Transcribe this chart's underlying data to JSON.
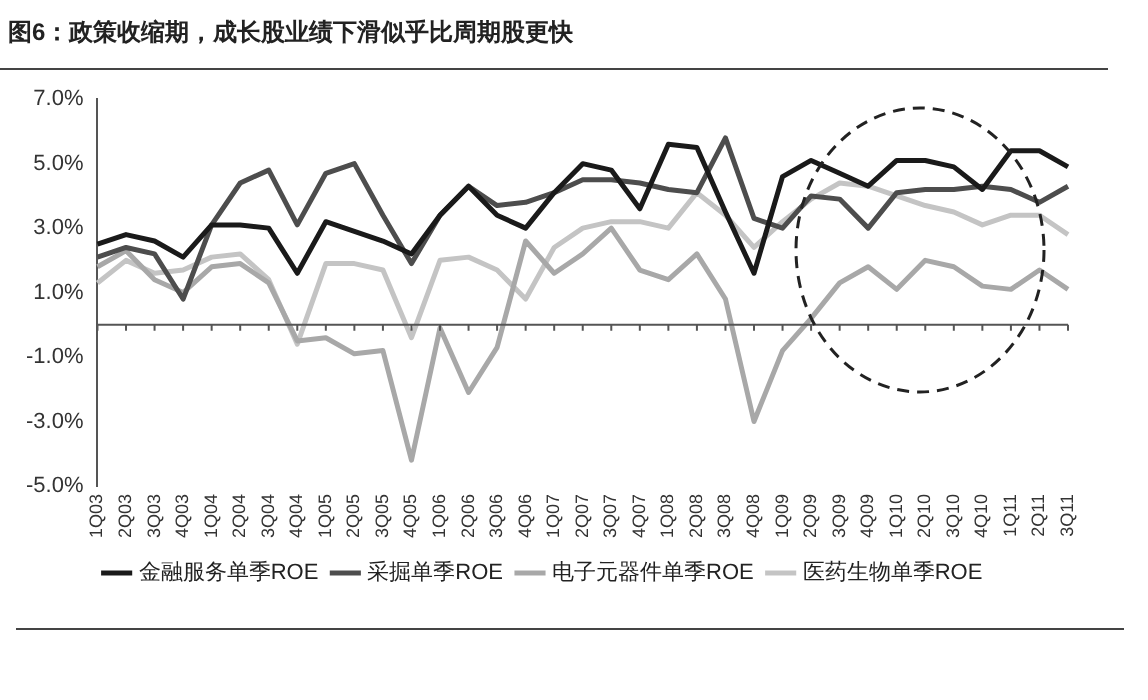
{
  "chart_data": {
    "type": "line",
    "title": "图6：政策收缩期，成长股业绩下滑似乎比周期股更快",
    "categories": [
      "1Q03",
      "2Q03",
      "3Q03",
      "4Q03",
      "1Q04",
      "2Q04",
      "3Q04",
      "4Q04",
      "1Q05",
      "2Q05",
      "3Q05",
      "4Q05",
      "1Q06",
      "2Q06",
      "3Q06",
      "4Q06",
      "1Q07",
      "2Q07",
      "3Q07",
      "4Q07",
      "1Q08",
      "2Q08",
      "3Q08",
      "4Q08",
      "1Q09",
      "2Q09",
      "3Q09",
      "4Q09",
      "1Q10",
      "2Q10",
      "3Q10",
      "4Q10",
      "1Q11",
      "2Q11",
      "3Q11"
    ],
    "series": [
      {
        "name": "金融服务单季ROE",
        "color": "#1a1a1a",
        "values": [
          2.5,
          2.8,
          2.6,
          2.1,
          3.1,
          3.1,
          3.0,
          1.6,
          3.2,
          2.9,
          2.6,
          2.2,
          3.4,
          4.3,
          3.4,
          3.0,
          4.1,
          5.0,
          4.8,
          3.6,
          5.6,
          5.5,
          3.5,
          1.6,
          4.6,
          5.1,
          4.7,
          4.3,
          5.1,
          5.1,
          4.9,
          4.2,
          5.4,
          5.4,
          4.9
        ]
      },
      {
        "name": "采掘单季ROE",
        "color": "#4d4d4d",
        "values": [
          2.1,
          2.4,
          2.2,
          0.8,
          3.1,
          4.4,
          4.8,
          3.1,
          4.7,
          5.0,
          3.4,
          1.9,
          3.4,
          4.3,
          3.7,
          3.8,
          4.1,
          4.5,
          4.5,
          4.4,
          4.2,
          4.1,
          5.8,
          3.3,
          3.0,
          4.0,
          3.9,
          3.0,
          4.1,
          4.2,
          4.2,
          4.3,
          4.2,
          3.8,
          4.3
        ]
      },
      {
        "name": "电子元器件单季ROE",
        "color": "#a8a8a8",
        "values": [
          1.8,
          2.3,
          1.4,
          1.0,
          1.8,
          1.9,
          1.3,
          -0.5,
          -0.4,
          -0.9,
          -0.8,
          -4.2,
          -0.1,
          -2.1,
          -0.7,
          2.6,
          1.6,
          2.2,
          3.0,
          1.7,
          1.4,
          2.2,
          0.8,
          -3.0,
          -0.8,
          0.2,
          1.3,
          1.8,
          1.1,
          2.0,
          1.8,
          1.2,
          1.1,
          1.7,
          1.1
        ]
      },
      {
        "name": "医药生物单季ROE",
        "color": "#c4c4c4",
        "values": [
          1.3,
          2.0,
          1.6,
          1.7,
          2.1,
          2.2,
          1.4,
          -0.6,
          1.9,
          1.9,
          1.7,
          -0.4,
          2.0,
          2.1,
          1.7,
          0.8,
          2.4,
          3.0,
          3.2,
          3.2,
          3.0,
          4.1,
          3.4,
          2.4,
          3.2,
          3.9,
          4.4,
          4.3,
          4.0,
          3.7,
          3.5,
          3.1,
          3.4,
          3.4,
          2.8
        ]
      }
    ],
    "ylim": [
      -5,
      7
    ],
    "yticks": [
      {
        "value": -5,
        "label": "-5.0%"
      },
      {
        "value": -3,
        "label": "-3.0%"
      },
      {
        "value": -1,
        "label": "-1.0%"
      },
      {
        "value": 1,
        "label": "1.0%"
      },
      {
        "value": 3,
        "label": "3.0%"
      },
      {
        "value": 5,
        "label": "5.0%"
      },
      {
        "value": 7,
        "label": "7.0%"
      }
    ],
    "grid": false,
    "legend": "bottom",
    "marker": "none",
    "line_style": "solid"
  }
}
